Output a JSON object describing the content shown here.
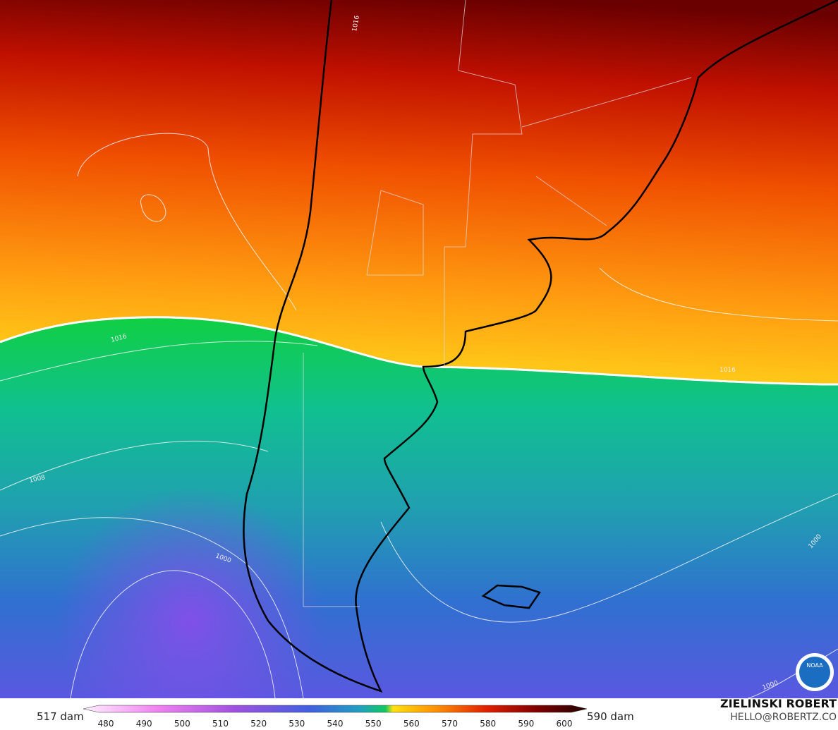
{
  "map": {
    "contour_labels": [
      "1016",
      "1016",
      "1016",
      "1008",
      "1000",
      "1000",
      "1000"
    ],
    "logo": "NOAA"
  },
  "colorbar": {
    "min_label": "517 dam",
    "max_label": "590 dam",
    "ticks": [
      "480",
      "490",
      "500",
      "510",
      "520",
      "530",
      "540",
      "550",
      "560",
      "570",
      "580",
      "590",
      "600"
    ]
  },
  "credit": {
    "name": "ZIELINSKI ROBERT",
    "email": "HELLO@ROBERTZ.CO"
  }
}
